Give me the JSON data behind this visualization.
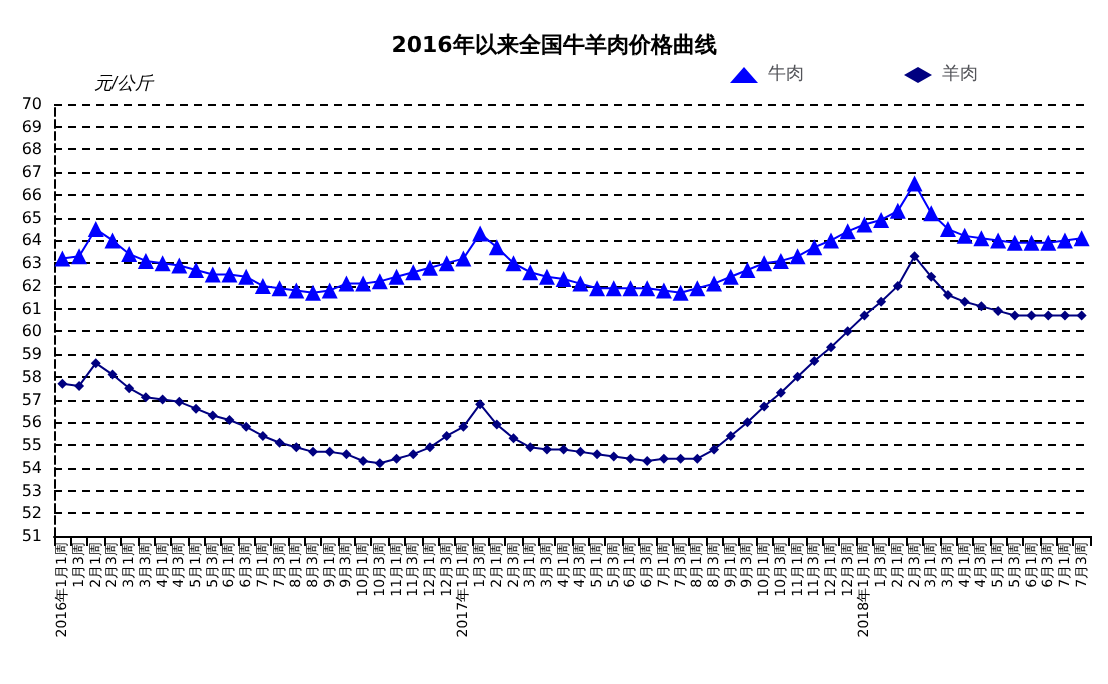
{
  "chart_data": {
    "type": "line",
    "title": "2016年以来全国牛羊肉价格曲线",
    "ylabel": "元/公斤",
    "categories": [
      "2016年1月1周",
      "1月3周",
      "2月1周",
      "2月3周",
      "3月1周",
      "3月3周",
      "4月1周",
      "4月3周",
      "5月1周",
      "5月3周",
      "6月1周",
      "6月3周",
      "7月1周",
      "7月3周",
      "8月1周",
      "8月3周",
      "9月1周",
      "9月3周",
      "10月1周",
      "10月3周",
      "11月1周",
      "11月3周",
      "12月1周",
      "12月3周",
      "2017年1月1周",
      "1月3周",
      "2月1周",
      "2月3周",
      "3月1周",
      "3月3周",
      "4月1周",
      "4月3周",
      "5月1周",
      "5月3周",
      "6月1周",
      "6月3周",
      "7月1周",
      "7月3周",
      "8月1周",
      "8月3周",
      "9月1周",
      "9月3周",
      "10月1周",
      "10月3周",
      "11月1周",
      "11月3周",
      "12月1周",
      "12月3周",
      "2018年1月1周",
      "1月3周",
      "2月1周",
      "2月3周",
      "3月1周",
      "3月3周",
      "4月1周",
      "4月3周",
      "5月1周",
      "5月3周",
      "6月1周",
      "6月3周",
      "7月1周",
      "7月3周"
    ],
    "series": [
      {
        "name": "牛肉",
        "color": "#0000ff",
        "marker": "triangle",
        "values": [
          63.2,
          63.3,
          64.5,
          64.0,
          63.4,
          63.1,
          63.0,
          62.9,
          62.7,
          62.5,
          62.5,
          62.4,
          62.0,
          61.9,
          61.8,
          61.7,
          61.8,
          62.1,
          62.1,
          62.2,
          62.4,
          62.6,
          62.8,
          63.0,
          63.2,
          64.3,
          63.7,
          63.0,
          62.6,
          62.4,
          62.3,
          62.1,
          61.9,
          61.9,
          61.9,
          61.9,
          61.8,
          61.7,
          61.9,
          62.1,
          62.4,
          62.7,
          63.0,
          63.1,
          63.3,
          63.7,
          64.0,
          64.4,
          64.7,
          64.9,
          65.3,
          66.5,
          65.2,
          64.5,
          64.2,
          64.1,
          64.0,
          63.9,
          63.9,
          63.9,
          64.0,
          64.1
        ]
      },
      {
        "name": "羊肉",
        "color": "#000080",
        "marker": "diamond",
        "values": [
          57.7,
          57.6,
          58.6,
          58.1,
          57.5,
          57.1,
          57.0,
          56.9,
          56.6,
          56.3,
          56.1,
          55.8,
          55.4,
          55.1,
          54.9,
          54.7,
          54.7,
          54.6,
          54.3,
          54.2,
          54.4,
          54.6,
          54.9,
          55.4,
          55.8,
          56.8,
          55.9,
          55.3,
          54.9,
          54.8,
          54.8,
          54.7,
          54.6,
          54.5,
          54.4,
          54.3,
          54.4,
          54.4,
          54.4,
          54.8,
          55.4,
          56.0,
          56.7,
          57.3,
          58.0,
          58.7,
          59.3,
          60.0,
          60.7,
          61.3,
          62.0,
          63.3,
          62.4,
          61.6,
          61.3,
          61.1,
          60.9,
          60.7,
          60.7,
          60.7,
          60.7,
          60.7
        ]
      }
    ],
    "ylim": [
      51,
      70
    ],
    "yticks": [
      51,
      52,
      53,
      54,
      55,
      56,
      57,
      58,
      59,
      60,
      61,
      62,
      63,
      64,
      65,
      66,
      67,
      68,
      69,
      70
    ],
    "grid": "y",
    "legend": "top right",
    "line_style": "solid"
  }
}
